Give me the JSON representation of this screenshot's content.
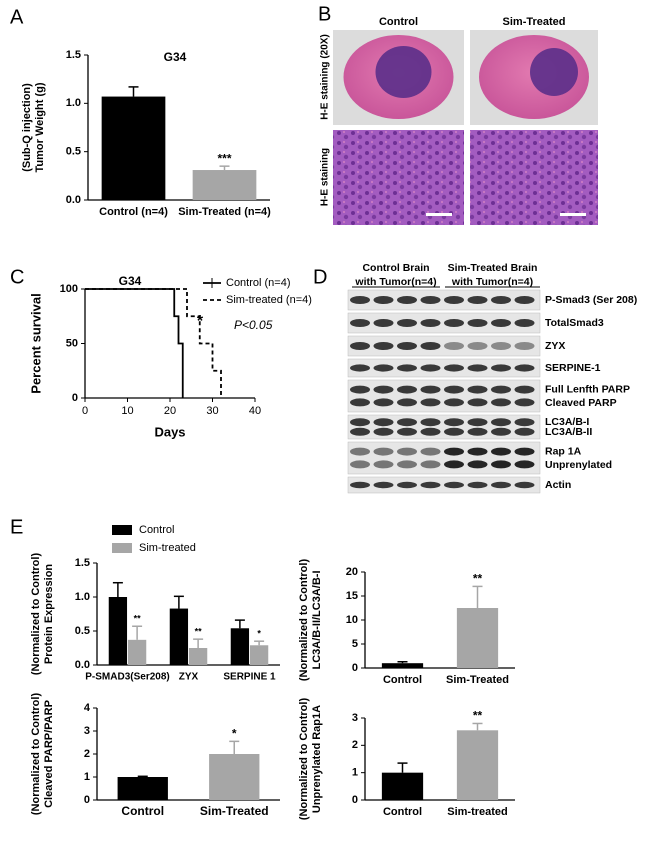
{
  "chart_data": [
    {
      "type": "bar",
      "panel_label": "A",
      "title": "G34",
      "ylabel": [
        "Tumor Weight (g)",
        "(Sub-Q injection)"
      ],
      "categories": [
        "Control (n=4)",
        "Sim-Treated (n=4)"
      ],
      "values": [
        1.07,
        0.31
      ],
      "errors": [
        0.1,
        0.04
      ],
      "colors": [
        "#000000",
        "#a6a6a6"
      ],
      "significance": [
        null,
        "***"
      ],
      "ylim": [
        0,
        1.5
      ],
      "yticks": [
        {
          "value": 0,
          "label": "0.0"
        },
        {
          "value": 0.5,
          "label": "0.5"
        },
        {
          "value": 1,
          "label": "1.0"
        },
        {
          "value": 1.5,
          "label": "1.5"
        }
      ]
    },
    {
      "type": "line",
      "panel_label": "C",
      "title": "G34",
      "ylabel": [
        "Percent survival"
      ],
      "xlabel": "Days",
      "xlim": [
        0,
        40
      ],
      "xticks": [
        0,
        10,
        20,
        30,
        40
      ],
      "ylim": [
        0,
        100
      ],
      "yticks": [
        0,
        50,
        100
      ],
      "series": [
        {
          "name": "Control (n=4)",
          "color": "#000000",
          "dashed": false,
          "x": [
            0,
            21,
            21,
            22,
            22,
            23,
            23
          ],
          "values": [
            100,
            100,
            75,
            75,
            50,
            50,
            0
          ]
        },
        {
          "name": "Sim-treated (n=4)",
          "color": "#000000",
          "dashed": true,
          "x": [
            0,
            24,
            24,
            27,
            27,
            30,
            30,
            32,
            32
          ],
          "values": [
            100,
            100,
            75,
            75,
            50,
            50,
            25,
            25,
            0
          ]
        }
      ],
      "annotations": [
        "*",
        "P<0.05"
      ]
    },
    {
      "type": "bar",
      "panel_label": "E",
      "ylabel": [
        "Protein Expression",
        "(Normalized to Control)"
      ],
      "categories": [
        "P-SMAD3(Ser208)",
        "ZYX",
        "SERPINE 1"
      ],
      "series": [
        {
          "name": "Control",
          "color": "#000000",
          "values": [
            1.0,
            0.83,
            0.54
          ],
          "errors": [
            0.21,
            0.18,
            0.12
          ],
          "significance": [
            null,
            null,
            null
          ]
        },
        {
          "name": "Sim-treated",
          "color": "#a6a6a6",
          "values": [
            0.37,
            0.25,
            0.29
          ],
          "errors": [
            0.2,
            0.13,
            0.06
          ],
          "significance": [
            "**",
            "**",
            "*"
          ]
        }
      ],
      "ylim": [
        0,
        1.5
      ],
      "yticks": [
        {
          "value": 0,
          "label": "0.0"
        },
        {
          "value": 0.5,
          "label": "0.5"
        },
        {
          "value": 1,
          "label": "1.0"
        },
        {
          "value": 1.5,
          "label": "1.5"
        }
      ]
    },
    {
      "type": "bar",
      "ylabel": [
        "LC3A/B-II/LC3A/B-I",
        "(Normalized to Control)"
      ],
      "categories": [
        "Control",
        "Sim-Treated"
      ],
      "values": [
        1.0,
        12.5
      ],
      "errors": [
        0.3,
        4.5
      ],
      "colors": [
        "#000000",
        "#a6a6a6"
      ],
      "significance": [
        null,
        "**"
      ],
      "ylim": [
        0,
        20
      ],
      "yticks": [
        0,
        5,
        10,
        15,
        20
      ]
    },
    {
      "type": "bar",
      "ylabel": [
        "Cleaved PARP/PARP",
        "(Normalized to Control)"
      ],
      "categories": [
        "Control",
        "Sim-Treated"
      ],
      "values": [
        1.0,
        2.0
      ],
      "errors": [
        0.03,
        0.55
      ],
      "colors": [
        "#000000",
        "#a6a6a6"
      ],
      "significance": [
        null,
        "*"
      ],
      "ylim": [
        0,
        4
      ],
      "yticks": [
        0,
        1,
        2,
        3,
        4
      ]
    },
    {
      "type": "bar",
      "ylabel": [
        "Unprenylated Rap1A",
        "(Normalized to Control)"
      ],
      "categories": [
        "Control",
        "Sim-treated"
      ],
      "values": [
        1.0,
        2.55
      ],
      "errors": [
        0.35,
        0.25
      ],
      "colors": [
        "#000000",
        "#a6a6a6"
      ],
      "significance": [
        null,
        "**"
      ],
      "ylim": [
        0,
        3
      ],
      "yticks": [
        0,
        1,
        2,
        3
      ]
    }
  ],
  "histology": {
    "panel_label": "B",
    "columns": [
      "Control",
      "Sim-Treated"
    ],
    "rows": [
      "H-E staining (20X)",
      "H-E staining"
    ]
  },
  "western_blot": {
    "panel_label": "D",
    "groups": [
      [
        "Control Brain",
        "with Tumor(n=4)"
      ],
      [
        "Sim-Treated Brain",
        "with Tumor(n=4)"
      ]
    ],
    "rows": [
      [
        "P-Smad3 (Ser 208)"
      ],
      [
        "TotalSmad3"
      ],
      [
        "ZYX"
      ],
      [
        "SERPINE-1"
      ],
      [
        "Full Lenfth PARP",
        "Cleaved PARP"
      ],
      [
        "LC3A/B-I",
        "LC3A/B-II"
      ],
      [
        "Rap 1A",
        "Unprenylated"
      ],
      [
        "Actin"
      ]
    ]
  }
}
